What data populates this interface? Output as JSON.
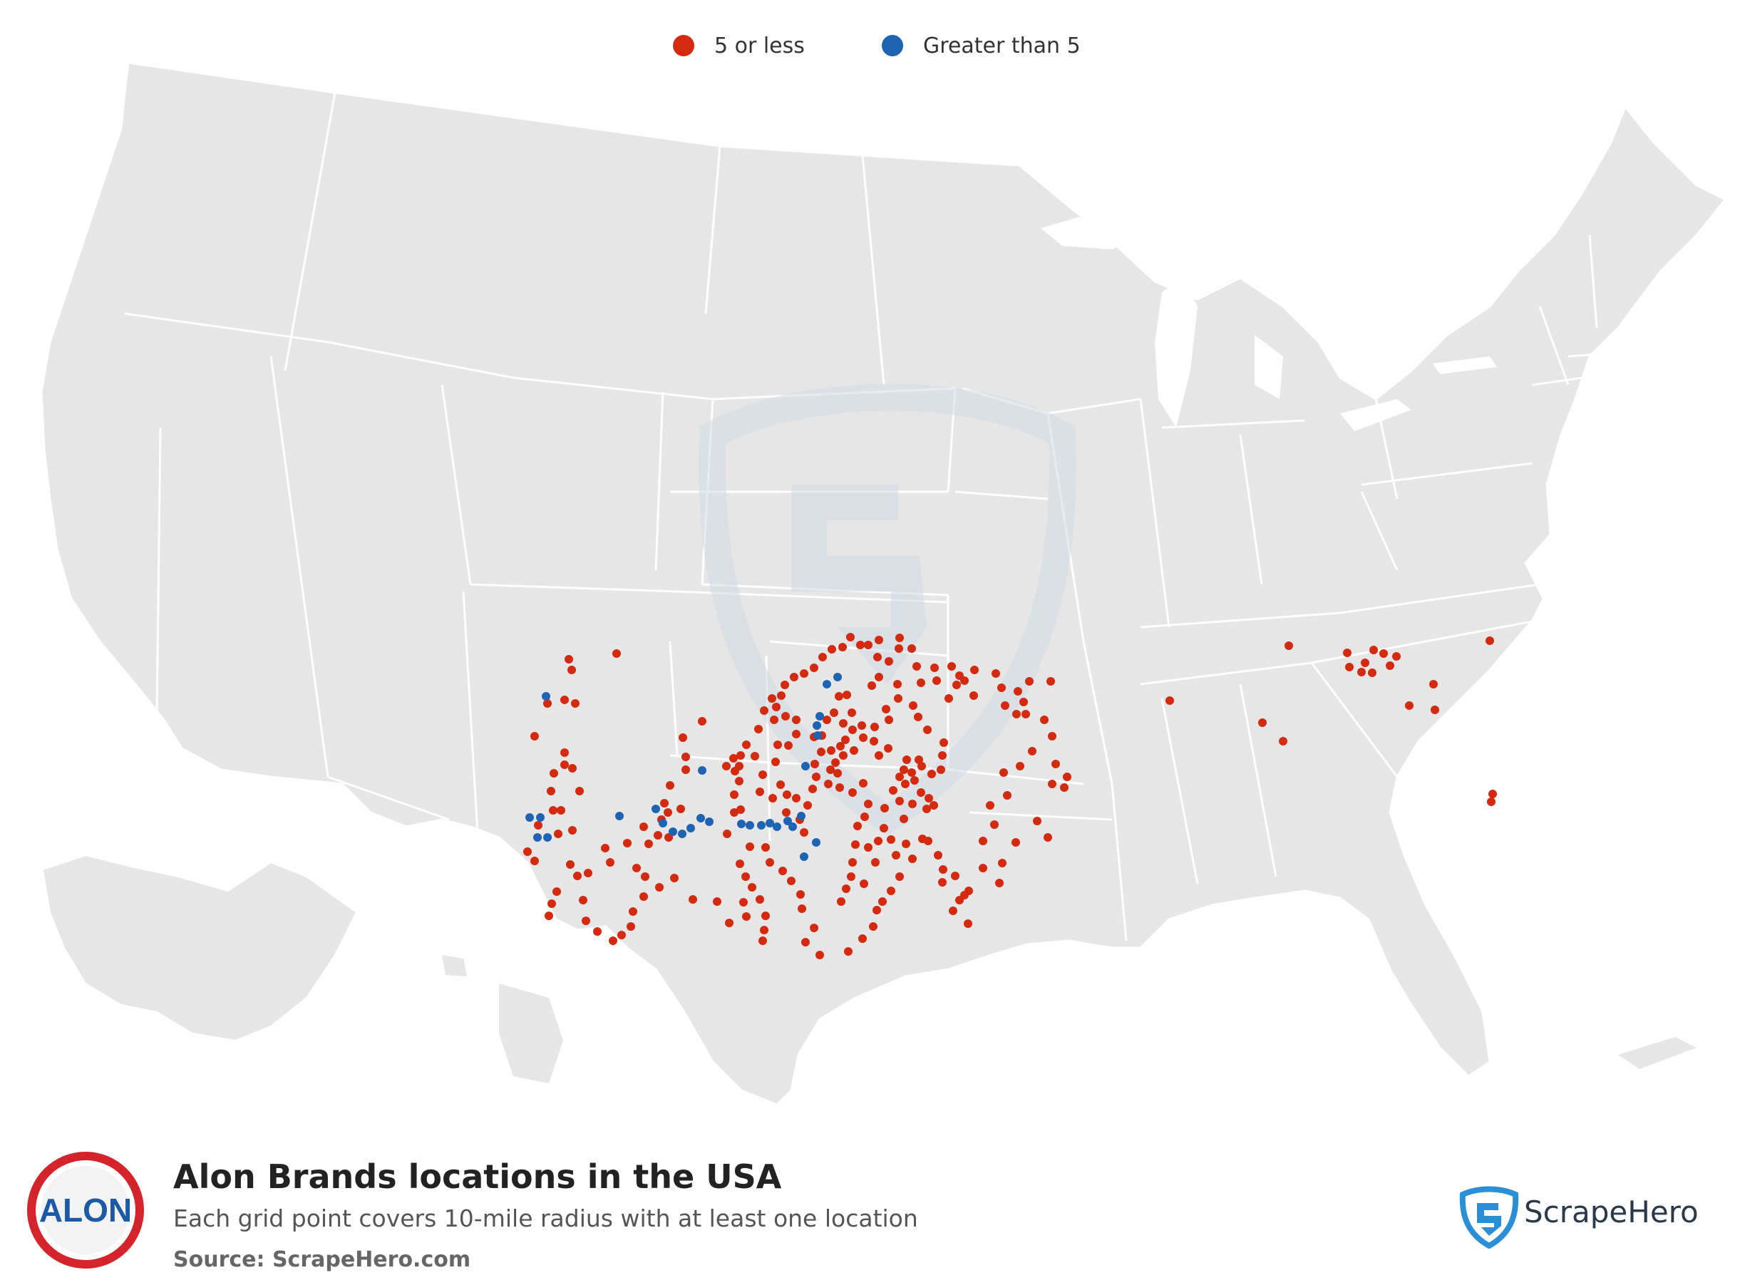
{
  "map": {
    "region": "USA",
    "land_color": "#e6e6e6",
    "border_color": "#ffffff",
    "watermark_icon": "scrapehero-shield-icon"
  },
  "legend": {
    "items": [
      {
        "label": "5 or less",
        "color": "#d42a0f"
      },
      {
        "label": "Greater than 5",
        "color": "#1f63b3"
      }
    ]
  },
  "footer": {
    "title": "Alon Brands locations in the USA",
    "subtitle": "Each grid point covers 10-mile radius with at least one location",
    "source": "Source: ScrapeHero.com",
    "brand_logo_text": "ALON",
    "brand_logo_icon": "alon-logo-icon",
    "brand_logo_colors": {
      "ring": "#d4232a",
      "text": "#1c5aa6"
    },
    "credit_name": "ScrapeHero",
    "credit_icon": "scrapehero-shield-icon",
    "credit_color": "#2b8fd6"
  }
}
